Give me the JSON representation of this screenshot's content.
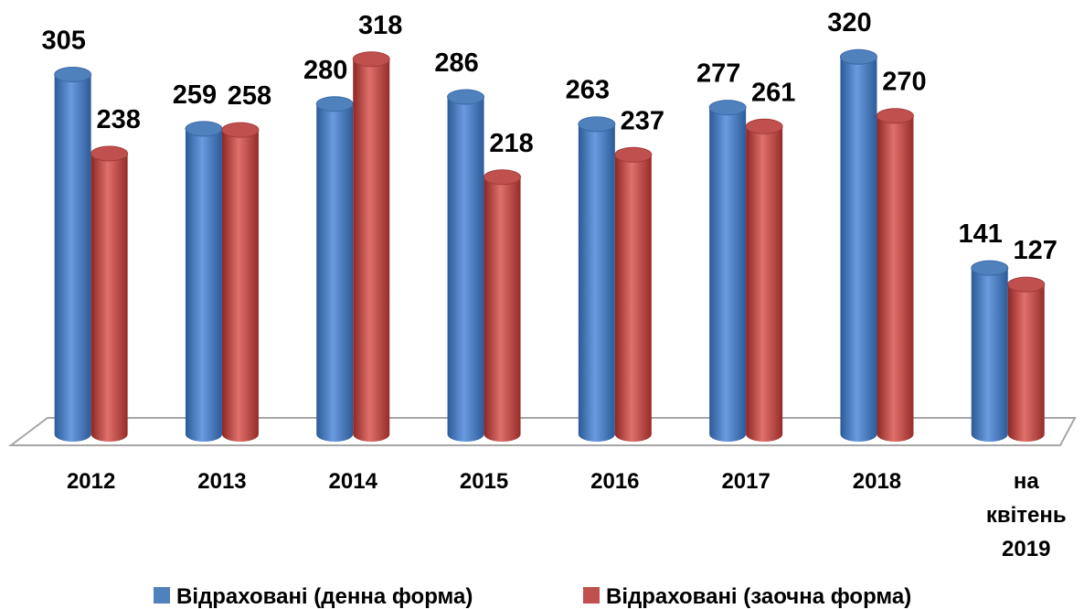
{
  "chart_data": {
    "type": "bar",
    "categories": [
      "2012",
      "2013",
      "2014",
      "2015",
      "2016",
      "2017",
      "2018",
      "на квітень 2019"
    ],
    "series": [
      {
        "name": "Відраховані (денна форма)",
        "color": "#4f81bd",
        "values": [
          305,
          259,
          280,
          286,
          263,
          277,
          320,
          141
        ]
      },
      {
        "name": "Відраховані (заочна форма)",
        "color": "#c0504d",
        "values": [
          238,
          258,
          318,
          218,
          237,
          261,
          270,
          127
        ]
      }
    ],
    "legend": "bottom"
  }
}
